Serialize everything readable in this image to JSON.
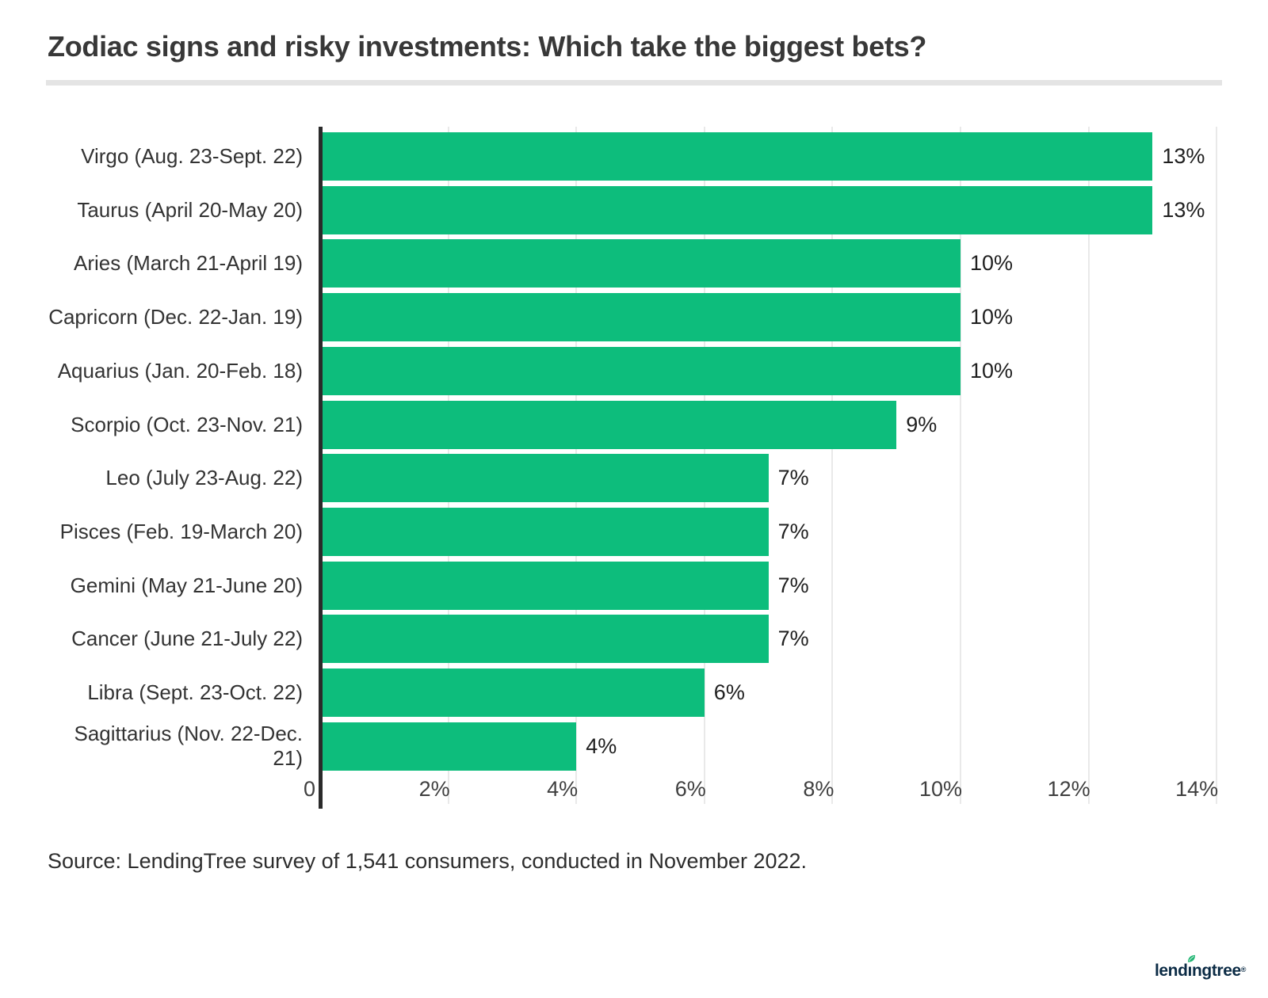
{
  "header": {
    "title": "Zodiac signs and risky investments: Which take the biggest bets?"
  },
  "chart_data": {
    "type": "bar",
    "orientation": "horizontal",
    "title": "Zodiac signs and risky investments: Which take the biggest bets?",
    "categories": [
      "Virgo (Aug. 23-Sept. 22)",
      "Taurus (April 20-May 20)",
      "Aries (March 21-April 19)",
      "Capricorn (Dec. 22-Jan. 19)",
      "Aquarius (Jan. 20-Feb. 18)",
      "Scorpio (Oct. 23-Nov. 21)",
      "Leo (July 23-Aug. 22)",
      "Pisces (Feb. 19-March 20)",
      "Gemini (May 21-June 20)",
      "Cancer (June 21-July 22)",
      "Libra (Sept. 23-Oct. 22)",
      "Sagittarius (Nov. 22-Dec. 21)"
    ],
    "values": [
      13,
      13,
      10,
      10,
      10,
      9,
      7,
      7,
      7,
      7,
      6,
      4
    ],
    "value_labels": [
      "13%",
      "13%",
      "10%",
      "10%",
      "10%",
      "9%",
      "7%",
      "7%",
      "7%",
      "7%",
      "6%",
      "4%"
    ],
    "xlabel": "",
    "ylabel": "",
    "xlim": [
      0,
      14
    ],
    "grid": true,
    "x_ticks": [
      {
        "value": 0,
        "label": "0"
      },
      {
        "value": 2,
        "label": "2%"
      },
      {
        "value": 4,
        "label": "4%"
      },
      {
        "value": 6,
        "label": "6%"
      },
      {
        "value": 8,
        "label": "8%"
      },
      {
        "value": 10,
        "label": "10%"
      },
      {
        "value": 12,
        "label": "12%"
      },
      {
        "value": 14,
        "label": "14%"
      }
    ],
    "bar_color": "#0dbd7c",
    "axis_color": "#2a2a2a",
    "gridline_color": "#e9e9e9"
  },
  "footer": {
    "source": "Source: LendingTree survey of 1,541 consumers, conducted in November 2022.",
    "logo": {
      "part1": "lend",
      "i": "ı",
      "part2": "ngtree",
      "mark": "®",
      "text_color": "#0b2b45",
      "leaf_color": "#21b573"
    }
  }
}
